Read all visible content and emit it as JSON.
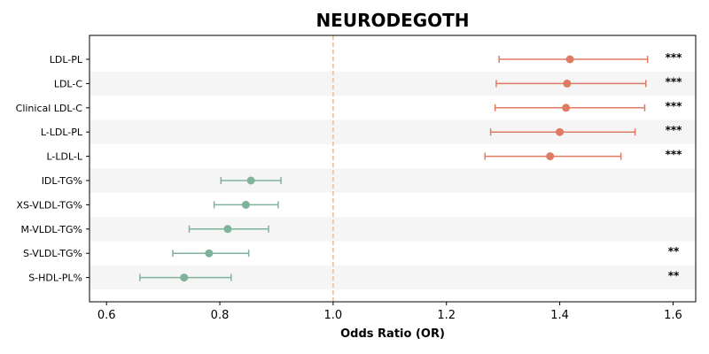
{
  "chart_data": {
    "type": "forest",
    "title": "NEURODEGOTH",
    "xlabel": "Odds Ratio (OR)",
    "xlim": [
      0.57,
      1.64
    ],
    "xticks": [
      "0.6",
      "0.8",
      "1.0",
      "1.2",
      "1.4",
      "1.6"
    ],
    "reference_line": 1.0,
    "colors": {
      "increased": "#e07b63",
      "decreased": "#80b39b",
      "reference": "#f2c27a",
      "band": "#f5f5f5"
    },
    "rows": [
      {
        "label": "LDL-PL",
        "or": 1.418,
        "lower": 1.293,
        "upper": 1.555,
        "sig": "***",
        "direction": "increased"
      },
      {
        "label": "LDL-C",
        "or": 1.413,
        "lower": 1.288,
        "upper": 1.552,
        "sig": "***",
        "direction": "increased"
      },
      {
        "label": "Clinical LDL-C",
        "or": 1.411,
        "lower": 1.286,
        "upper": 1.55,
        "sig": "***",
        "direction": "increased"
      },
      {
        "label": "L-LDL-PL",
        "or": 1.4,
        "lower": 1.278,
        "upper": 1.533,
        "sig": "***",
        "direction": "increased"
      },
      {
        "label": "L-LDL-L",
        "or": 1.383,
        "lower": 1.268,
        "upper": 1.508,
        "sig": "***",
        "direction": "increased"
      },
      {
        "label": "IDL-TG%",
        "or": 0.855,
        "lower": 0.802,
        "upper": 0.908,
        "sig": "",
        "direction": "decreased"
      },
      {
        "label": "XS-VLDL-TG%",
        "or": 0.846,
        "lower": 0.79,
        "upper": 0.903,
        "sig": "",
        "direction": "decreased"
      },
      {
        "label": "M-VLDL-TG%",
        "or": 0.814,
        "lower": 0.746,
        "upper": 0.886,
        "sig": "",
        "direction": "decreased"
      },
      {
        "label": "S-VLDL-TG%",
        "or": 0.781,
        "lower": 0.717,
        "upper": 0.851,
        "sig": "**",
        "direction": "decreased"
      },
      {
        "label": "S-HDL-PL%",
        "or": 0.737,
        "lower": 0.659,
        "upper": 0.82,
        "sig": "**",
        "direction": "decreased"
      }
    ]
  }
}
